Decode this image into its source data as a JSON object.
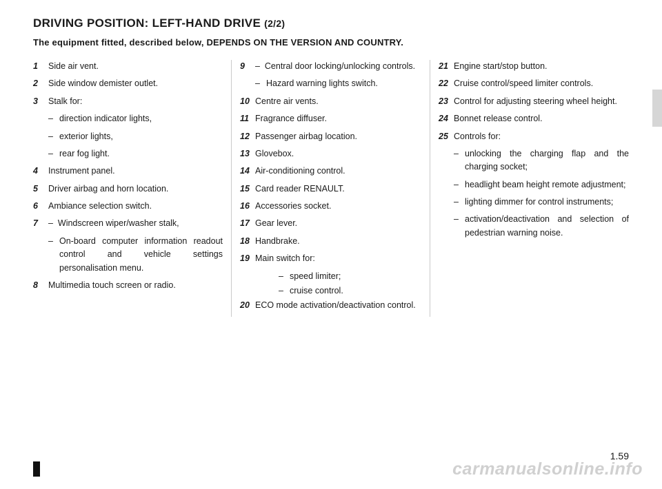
{
  "title_main": "DRIVING POSITION: LEFT-HAND DRIVE ",
  "title_sub": "(2/2)",
  "subtitle": "The equipment fitted, described below, DEPENDS ON THE VERSION AND COUNTRY.",
  "columns": [
    [
      {
        "num": "1",
        "text": "Side air vent."
      },
      {
        "num": "2",
        "text": "Side window demister outlet."
      },
      {
        "num": "3",
        "text": "Stalk for:",
        "subs": [
          "direction indicator lights,",
          "exterior lights,",
          "rear fog light."
        ]
      },
      {
        "num": "4",
        "text": "Instrument panel."
      },
      {
        "num": "5",
        "text": "Driver airbag and horn location."
      },
      {
        "num": "6",
        "text": "Ambiance selection switch."
      },
      {
        "num": "7",
        "subs_first": [
          "Windscreen wiper/washer stalk,",
          "On-board computer information readout control and vehicle settings personalisation menu."
        ]
      },
      {
        "num": "8",
        "text": "Multimedia touch screen or radio."
      }
    ],
    [
      {
        "num": "9",
        "subs_first": [
          "Central door locking/unlocking controls.",
          "Hazard warning lights switch."
        ]
      },
      {
        "num": "10",
        "text": "Centre air vents."
      },
      {
        "num": "11",
        "text": "Fragrance diffuser."
      },
      {
        "num": "12",
        "text": "Passenger airbag location."
      },
      {
        "num": "13",
        "text": "Glovebox."
      },
      {
        "num": "14",
        "text": "Air-conditioning control."
      },
      {
        "num": "15",
        "text": "Card reader RENAULT."
      },
      {
        "num": "16",
        "text": "Accessories socket."
      },
      {
        "num": "17",
        "text": "Gear lever."
      },
      {
        "num": "18",
        "text": "Handbrake."
      },
      {
        "num": "19",
        "text": "Main switch for:",
        "subsubs": [
          "speed limiter;",
          "cruise control."
        ]
      },
      {
        "num": "20",
        "text": "ECO mode activation/deactivation control."
      }
    ],
    [
      {
        "num": "21",
        "text": "Engine start/stop button."
      },
      {
        "num": "22",
        "text": "Cruise control/speed limiter controls."
      },
      {
        "num": "23",
        "text": "Control for adjusting steering wheel height."
      },
      {
        "num": "24",
        "text": "Bonnet release control."
      },
      {
        "num": "25",
        "text": "Controls for:",
        "subs": [
          "unlocking the charging flap and the charging socket;",
          "headlight beam height remote adjustment;",
          "lighting dimmer for control instruments;",
          "activation/deactivation and selection of pedestrian warning noise."
        ]
      }
    ]
  ],
  "page_number": "1.59",
  "watermark": "carmanualsonline.info",
  "colors": {
    "text": "#1a1a1a",
    "divider": "#c9c9c9",
    "side_tab": "#d6d6d6",
    "watermark": "rgba(170,170,170,0.55)",
    "background": "#ffffff"
  }
}
